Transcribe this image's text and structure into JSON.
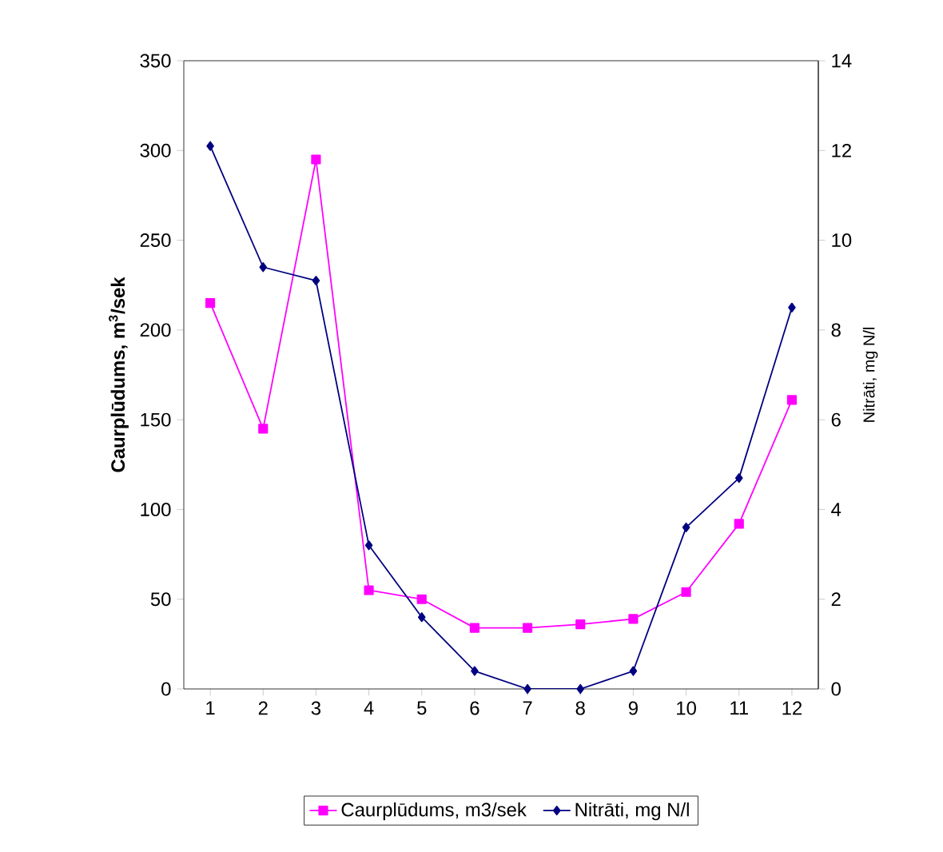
{
  "chart_data": {
    "type": "line",
    "categories": [
      "1",
      "2",
      "3",
      "4",
      "5",
      "6",
      "7",
      "8",
      "9",
      "10",
      "11",
      "12"
    ],
    "series": [
      {
        "name": "Caurplūdums, m3/sek",
        "color": "#ff00ff",
        "marker": "square",
        "values": [
          215,
          145,
          295,
          55,
          50,
          34,
          34,
          36,
          39,
          54,
          92,
          161
        ]
      },
      {
        "name": "Nitrāti, mg N/l",
        "color": "#000080",
        "marker": "diamond",
        "axis": "y2",
        "values": [
          12.1,
          9.4,
          9.1,
          3.2,
          1.6,
          0.4,
          0,
          0,
          0.4,
          3.6,
          4.7,
          8.5
        ]
      }
    ],
    "ylabel": "Caurplūdums, m$^{3}$/sek",
    "y2label": "Nitrāti, mg N/l",
    "ylim": [
      0,
      350
    ],
    "yticks": [
      0,
      50,
      100,
      150,
      200,
      250,
      300,
      350
    ],
    "y2lim": [
      0,
      14
    ],
    "y2ticks": [
      0,
      2,
      4,
      6,
      8,
      10,
      12,
      14
    ],
    "grid": false,
    "legend": "bottom",
    "line_style": "solid"
  }
}
